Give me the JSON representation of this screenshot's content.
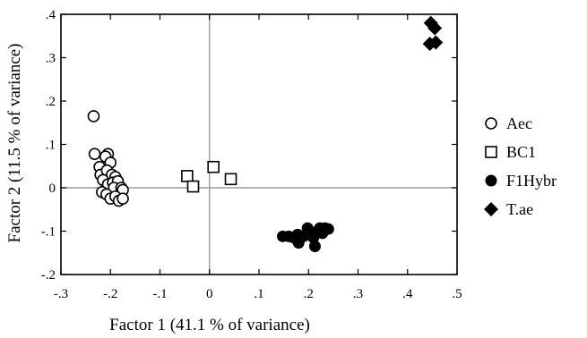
{
  "chart_data": {
    "type": "scatter",
    "title": "",
    "xlabel": "Factor 1 (41.1 % of variance)",
    "ylabel": "Factor 2 (11.5 % of variance)",
    "xlim": [
      -0.3,
      0.5
    ],
    "ylim": [
      -0.2,
      0.4
    ],
    "x_ticks": [
      {
        "value": -0.3,
        "label": "-.3"
      },
      {
        "value": -0.2,
        "label": "-.2"
      },
      {
        "value": -0.1,
        "label": "-.1"
      },
      {
        "value": 0,
        "label": "0"
      },
      {
        "value": 0.1,
        "label": ".1"
      },
      {
        "value": 0.2,
        "label": ".2"
      },
      {
        "value": 0.3,
        "label": ".3"
      },
      {
        "value": 0.4,
        "label": ".4"
      },
      {
        "value": 0.5,
        "label": ".5"
      }
    ],
    "y_ticks": [
      {
        "value": -0.2,
        "label": "-.2"
      },
      {
        "value": -0.1,
        "label": "-.1"
      },
      {
        "value": 0,
        "label": "0"
      },
      {
        "value": 0.1,
        "label": ".1"
      },
      {
        "value": 0.2,
        "label": ".2"
      },
      {
        "value": 0.3,
        "label": ".3"
      },
      {
        "value": 0.4,
        "label": ".4"
      }
    ],
    "reference_lines": {
      "x": 0,
      "y": 0
    },
    "grid": false,
    "legend_position": "right",
    "series": [
      {
        "name": "Aec",
        "marker": "open-circle",
        "points": [
          [
            -0.234,
            0.165
          ],
          [
            -0.232,
            0.078
          ],
          [
            -0.222,
            0.048
          ],
          [
            -0.22,
            0.03
          ],
          [
            -0.205,
            0.078
          ],
          [
            -0.21,
            0.072
          ],
          [
            -0.2,
            0.058
          ],
          [
            -0.207,
            0.04
          ],
          [
            -0.197,
            0.03
          ],
          [
            -0.19,
            0.025
          ],
          [
            -0.215,
            0.018
          ],
          [
            -0.205,
            0.008
          ],
          [
            -0.195,
            0.012
          ],
          [
            -0.185,
            0.015
          ],
          [
            -0.193,
            0.0
          ],
          [
            -0.178,
            0.0
          ],
          [
            -0.175,
            -0.005
          ],
          [
            -0.217,
            -0.01
          ],
          [
            -0.208,
            -0.015
          ],
          [
            -0.2,
            -0.025
          ],
          [
            -0.19,
            -0.02
          ],
          [
            -0.183,
            -0.03
          ],
          [
            -0.175,
            -0.025
          ]
        ]
      },
      {
        "name": "BC1",
        "marker": "open-square",
        "points": [
          [
            -0.045,
            0.027
          ],
          [
            -0.033,
            0.003
          ],
          [
            0.008,
            0.048
          ],
          [
            0.043,
            0.02
          ]
        ]
      },
      {
        "name": "F1Hybr",
        "marker": "filled-circle",
        "points": [
          [
            0.148,
            -0.112
          ],
          [
            0.16,
            -0.112
          ],
          [
            0.17,
            -0.115
          ],
          [
            0.178,
            -0.108
          ],
          [
            0.18,
            -0.127
          ],
          [
            0.19,
            -0.112
          ],
          [
            0.198,
            -0.093
          ],
          [
            0.205,
            -0.105
          ],
          [
            0.21,
            -0.115
          ],
          [
            0.213,
            -0.135
          ],
          [
            0.218,
            -0.1
          ],
          [
            0.223,
            -0.093
          ],
          [
            0.228,
            -0.105
          ],
          [
            0.233,
            -0.093
          ],
          [
            0.24,
            -0.095
          ]
        ]
      },
      {
        "name": "T.ae",
        "marker": "filled-diamond",
        "points": [
          [
            0.447,
            0.38
          ],
          [
            0.455,
            0.368
          ],
          [
            0.445,
            0.332
          ],
          [
            0.457,
            0.335
          ]
        ]
      }
    ]
  }
}
